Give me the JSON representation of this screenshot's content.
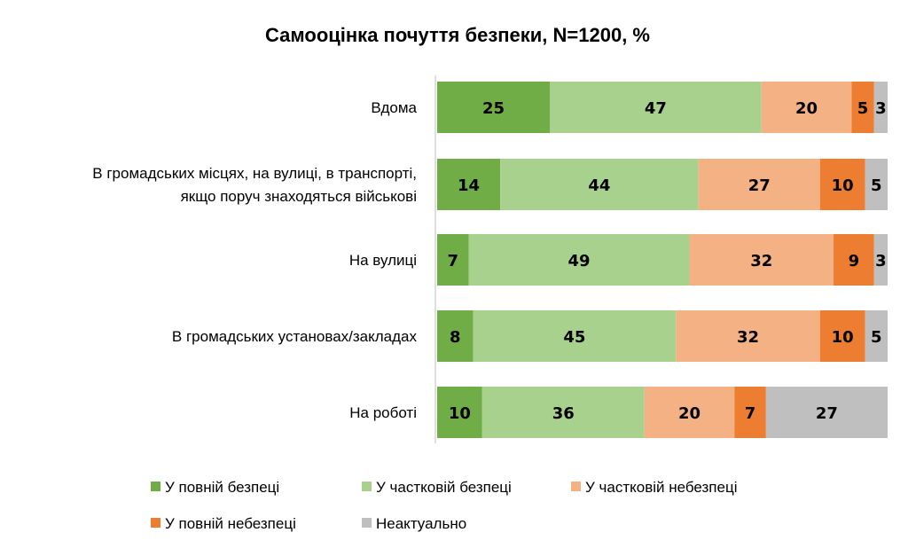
{
  "chart_data": {
    "type": "bar",
    "orientation": "horizontal",
    "stacked": true,
    "title": "Самооцінка почуття безпеки, N=1200, %",
    "categories": [
      [
        "Вдома"
      ],
      [
        "В громадських місцях, на вулиці, в транспорті,",
        "якщо поруч знаходяться військові"
      ],
      [
        "На вулиці"
      ],
      [
        "В громадських установах/закладах"
      ],
      [
        "На роботі"
      ]
    ],
    "series": [
      {
        "name": "У повній безпеці",
        "color": "#70AD47",
        "values": [
          25,
          14,
          7,
          8,
          10
        ]
      },
      {
        "name": "У частковій безпеці",
        "color": "#A9D18E",
        "values": [
          47,
          44,
          49,
          45,
          36
        ]
      },
      {
        "name": "У частковій небезпеці",
        "color": "#F4B183",
        "values": [
          20,
          27,
          32,
          32,
          20
        ]
      },
      {
        "name": "У повній небезпеці",
        "color": "#ED7D31",
        "values": [
          5,
          10,
          9,
          10,
          7
        ]
      },
      {
        "name": "Неактуально",
        "color": "#BFBFBF",
        "values": [
          3,
          5,
          3,
          5,
          27
        ]
      }
    ],
    "xlim": [
      0,
      100
    ],
    "grid": false,
    "legend": "bottom"
  }
}
